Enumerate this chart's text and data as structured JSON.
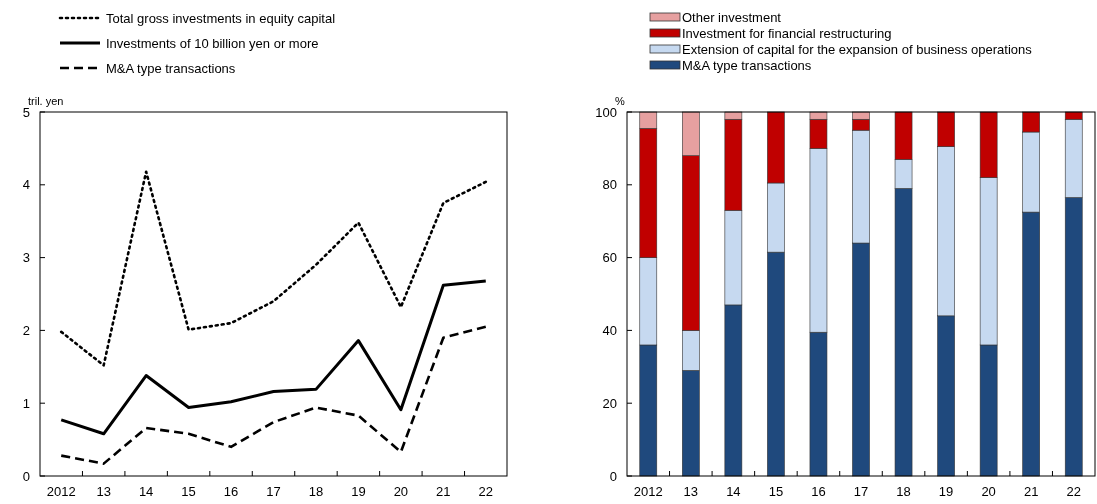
{
  "chart_data": [
    {
      "type": "line",
      "ylabel": "tril. yen",
      "categories": [
        "2012",
        "13",
        "14",
        "15",
        "16",
        "17",
        "18",
        "19",
        "20",
        "21",
        "22"
      ],
      "ylim": [
        0,
        5
      ],
      "yticks": [
        0,
        1,
        2,
        3,
        4,
        5
      ],
      "legend": "top left",
      "series": [
        {
          "name": "Total gross investments in equity capital",
          "color": "#000000",
          "line_style": "dotted",
          "values": [
            1.98,
            1.52,
            4.18,
            2.01,
            2.1,
            2.4,
            2.9,
            3.48,
            2.32,
            3.75,
            4.04
          ]
        },
        {
          "name": "Investments of 10 billion yen or more",
          "color": "#000000",
          "line_style": "solid",
          "values": [
            0.77,
            0.58,
            1.38,
            0.94,
            1.02,
            1.16,
            1.19,
            1.86,
            0.91,
            2.62,
            2.68
          ]
        },
        {
          "name": "M&A type transactions",
          "color": "#000000",
          "line_style": "dashed",
          "values": [
            0.28,
            0.17,
            0.66,
            0.58,
            0.4,
            0.74,
            0.94,
            0.83,
            0.33,
            1.9,
            2.05
          ]
        }
      ]
    },
    {
      "type": "bar",
      "stacked": true,
      "ylabel": "%",
      "categories": [
        "2012",
        "13",
        "14",
        "15",
        "16",
        "17",
        "18",
        "19",
        "20",
        "21",
        "22"
      ],
      "ylim": [
        0,
        100
      ],
      "yticks": [
        0,
        20,
        40,
        60,
        80,
        100
      ],
      "legend": "top",
      "series": [
        {
          "name": "M&A type transactions",
          "color": "#1f497d",
          "values": [
            36,
            29,
            47,
            61.5,
            39.5,
            64,
            79,
            44,
            36,
            72.5,
            76.5
          ]
        },
        {
          "name": "Extension of capital for the expansion of business operations",
          "color": "#c6d9f0",
          "values": [
            24,
            11,
            26,
            19,
            50.5,
            31,
            8,
            46.5,
            46,
            22,
            21.5
          ]
        },
        {
          "name": "Investment for financial restructuring",
          "color": "#c00000",
          "values": [
            35.5,
            48,
            25,
            19.5,
            8,
            3,
            13,
            9.5,
            18,
            5.5,
            2
          ]
        },
        {
          "name": "Other investment",
          "color": "#e6a0a0",
          "values": [
            4.5,
            12,
            2,
            0,
            2,
            2,
            0,
            0,
            0,
            0,
            0
          ]
        }
      ]
    }
  ]
}
